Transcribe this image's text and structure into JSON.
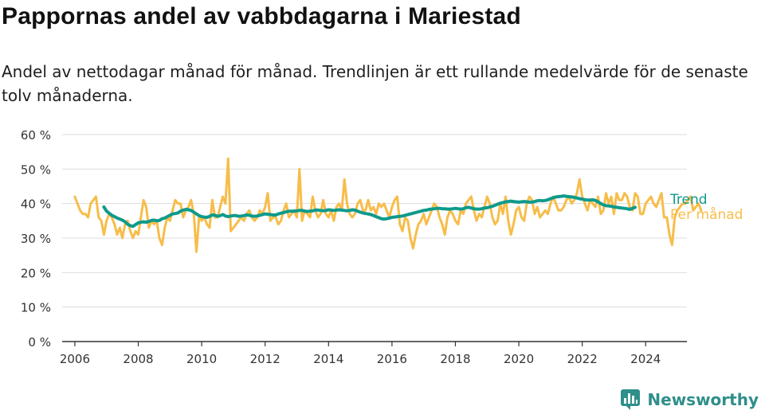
{
  "title": "Pappornas andel av vabbdagarna i Mariestad",
  "subtitle": "Andel av nettodagar månad för månad. Trendlinjen är ett rullande medelvärde för de senaste tolv månaderna.",
  "brand": "Newsworthy",
  "colors": {
    "monthly": "#F7BD4A",
    "trend": "#0E9A8B",
    "grid": "#dddddd",
    "axis": "#333333",
    "brand": "#2f8f8a"
  },
  "chart_data": {
    "type": "line",
    "x_unit": "year (decimal, monthly steps)",
    "ylim": [
      0,
      60
    ],
    "xlim": [
      2005.6,
      2025.3
    ],
    "y_ticks": [
      0,
      10,
      20,
      30,
      40,
      50,
      60
    ],
    "y_tick_labels": [
      "0 %",
      "10 %",
      "20 %",
      "30 %",
      "40 %",
      "50 %",
      "60 %"
    ],
    "x_ticks": [
      2006,
      2008,
      2010,
      2012,
      2014,
      2016,
      2018,
      2020,
      2022,
      2024
    ],
    "x_tick_labels": [
      "2006",
      "2008",
      "2010",
      "2012",
      "2014",
      "2016",
      "2018",
      "2020",
      "2022",
      "2024"
    ],
    "grid": "horizontal",
    "legend": "inline-right",
    "series": [
      {
        "name": "Per månad",
        "x_start": 2006.0,
        "x_step": 0.08333,
        "values": [
          42,
          40,
          38,
          37,
          37,
          36,
          40,
          41,
          42,
          36,
          35,
          31,
          35,
          37,
          36,
          34,
          31,
          33,
          30,
          34,
          35,
          32,
          30,
          32,
          31,
          36,
          41,
          39,
          33,
          35,
          34,
          35,
          30,
          28,
          33,
          36,
          35,
          38,
          41,
          40,
          40,
          36,
          38,
          39,
          41,
          37,
          26,
          36,
          35,
          36,
          34,
          33,
          41,
          36,
          36,
          39,
          42,
          40,
          53,
          32,
          33,
          34,
          35,
          36,
          35,
          37,
          38,
          36,
          35,
          36,
          38,
          37,
          39,
          43,
          35,
          36,
          36,
          34,
          35,
          38,
          40,
          36,
          37,
          38,
          36,
          50,
          35,
          38,
          37,
          36,
          42,
          38,
          36,
          37,
          41,
          37,
          36,
          38,
          35,
          39,
          40,
          38,
          47,
          40,
          37,
          36,
          37,
          40,
          41,
          38,
          38,
          41,
          38,
          39,
          37,
          40,
          39,
          40,
          38,
          36,
          39,
          41,
          42,
          34,
          32,
          36,
          35,
          30,
          27,
          31,
          34,
          35,
          37,
          34,
          36,
          38,
          40,
          39,
          36,
          34,
          31,
          36,
          38,
          37,
          35,
          34,
          38,
          37,
          40,
          41,
          42,
          38,
          35,
          37,
          36,
          39,
          42,
          40,
          36,
          34,
          35,
          40,
          37,
          42,
          35,
          31,
          34,
          38,
          39,
          36,
          35,
          40,
          42,
          41,
          37,
          39,
          36,
          37,
          38,
          37,
          40,
          42,
          40,
          38,
          38,
          39,
          41,
          42,
          40,
          41,
          43,
          47,
          42,
          40,
          38,
          41,
          40,
          39,
          42,
          37,
          38,
          43,
          40,
          42,
          37,
          43,
          41,
          41,
          43,
          42,
          39,
          38,
          43,
          42,
          37,
          37,
          40,
          41,
          42,
          40,
          39,
          41,
          43,
          36,
          36,
          31,
          28,
          36,
          38,
          39,
          40,
          40,
          41,
          42,
          38,
          39,
          40,
          38
        ]
      },
      {
        "name": "Trend",
        "x_start": 2006.9167,
        "x_step": 0.08333,
        "values": [
          39,
          37.8,
          37.2,
          36.6,
          36.2,
          35.8,
          35.5,
          35.2,
          34.7,
          34,
          33.6,
          33.4,
          33.9,
          34.4,
          34.6,
          34.7,
          34.6,
          34.8,
          35.1,
          35.2,
          35,
          35.1,
          35.6,
          35.8,
          36.2,
          36.6,
          37,
          37.1,
          37.3,
          37.8,
          38.1,
          38.3,
          38.2,
          38,
          37.5,
          37,
          36.5,
          36.2,
          36.1,
          36,
          36.3,
          36.7,
          36.6,
          36.3,
          36.5,
          36.8,
          36.4,
          36.2,
          36.4,
          36.5,
          36.5,
          36.3,
          36.4,
          36.5,
          36.7,
          36.6,
          36.4,
          36.3,
          36.4,
          36.6,
          36.8,
          37,
          36.9,
          36.8,
          36.7,
          36.7,
          37,
          37.2,
          37.4,
          37.6,
          37.8,
          37.8,
          37.8,
          37.9,
          38,
          38,
          37.8,
          37.7,
          37.8,
          37.9,
          38.1,
          38.1,
          38,
          37.9,
          38,
          38.2,
          38.1,
          38,
          38.1,
          38.2,
          38.1,
          38,
          37.9,
          38,
          38.2,
          38.1,
          37.8,
          37.5,
          37.3,
          37.1,
          37,
          36.8,
          36.5,
          36.2,
          35.9,
          35.6,
          35.5,
          35.6,
          35.8,
          36,
          36.1,
          36.2,
          36.3,
          36.4,
          36.6,
          36.8,
          37,
          37.2,
          37.4,
          37.6,
          37.8,
          38,
          38.1,
          38.3,
          38.4,
          38.5,
          38.6,
          38.6,
          38.5,
          38.5,
          38.4,
          38.4,
          38.5,
          38.6,
          38.5,
          38.4,
          38.5,
          38.8,
          38.9,
          38.7,
          38.5,
          38.4,
          38.4,
          38.5,
          38.7,
          38.8,
          39,
          39.2,
          39.5,
          39.8,
          40.1,
          40.3,
          40.5,
          40.6,
          40.7,
          40.6,
          40.5,
          40.4,
          40.5,
          40.6,
          40.5,
          40.4,
          40.4,
          40.6,
          40.8,
          40.9,
          40.8,
          40.9,
          41.1,
          41.4,
          41.7,
          41.9,
          42,
          42.1,
          42.2,
          42.1,
          42,
          41.9,
          41.8,
          41.6,
          41.4,
          41.3,
          41.1,
          41,
          41,
          41.1,
          40.9,
          40.5,
          40,
          39.6,
          39.4,
          39.3,
          39.2,
          39,
          38.9,
          38.8,
          38.7,
          38.6,
          38.5,
          38.3,
          38.6,
          38.9
        ]
      }
    ]
  }
}
